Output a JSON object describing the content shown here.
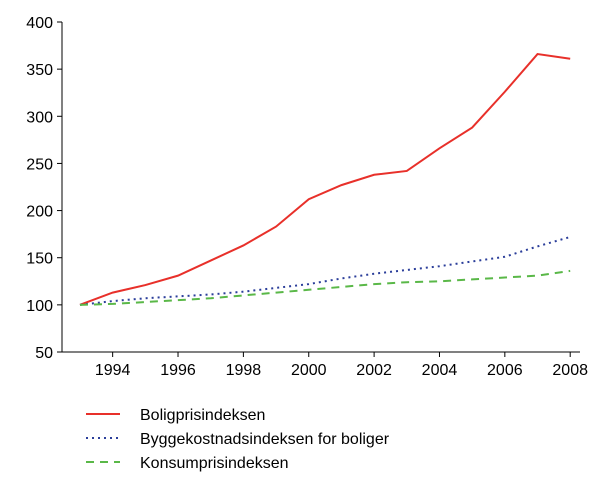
{
  "chart_data": {
    "type": "line",
    "x": [
      1993,
      1994,
      1995,
      1996,
      1997,
      1998,
      1999,
      2000,
      2001,
      2002,
      2003,
      2004,
      2005,
      2006,
      2007,
      2008
    ],
    "series": [
      {
        "name": "Boligprisindeksen",
        "color": "#e8302a",
        "dash": "solid",
        "values": [
          100,
          113,
          121,
          131,
          147,
          163,
          183,
          212,
          227,
          238,
          242,
          266,
          288,
          326,
          366,
          361
        ]
      },
      {
        "name": "Byggekostnadsindeksen for boliger",
        "color": "#2b3e9a",
        "dash": "dotted",
        "values": [
          100,
          104,
          107,
          109,
          111,
          114,
          118,
          122,
          128,
          133,
          137,
          141,
          146,
          151,
          162,
          172
        ]
      },
      {
        "name": "Konsumprisindeksen",
        "color": "#5ab848",
        "dash": "dashed",
        "values": [
          100,
          101,
          103,
          105,
          107,
          110,
          113,
          116,
          119,
          122,
          124,
          125,
          127,
          129,
          131,
          136
        ]
      }
    ],
    "xlim": [
      1992.45,
      2008.3
    ],
    "xticks": [
      1994,
      1996,
      1998,
      2000,
      2002,
      2004,
      2006,
      2008
    ],
    "ylim": [
      50,
      400
    ],
    "yticks": [
      50,
      100,
      150,
      200,
      250,
      300,
      350,
      400
    ]
  }
}
